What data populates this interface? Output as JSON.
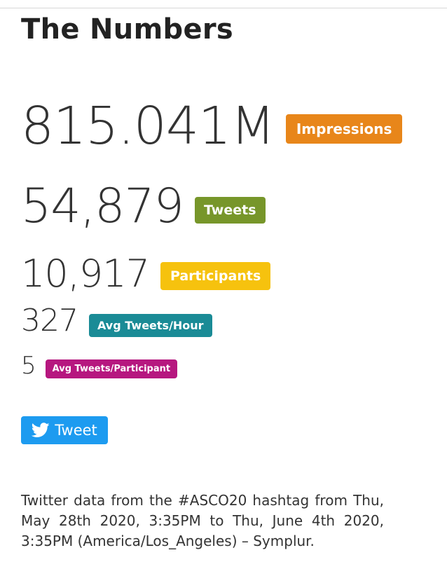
{
  "header": {
    "title": "The Numbers"
  },
  "stats": {
    "impressions": {
      "value": "815.041M",
      "label": "Impressions",
      "color": "#e8861a"
    },
    "tweets": {
      "value": "54,879",
      "label": "Tweets",
      "color": "#77962a"
    },
    "participants": {
      "value": "10,917",
      "label": "Participants",
      "color": "#f6c20e"
    },
    "avg_tweets_hour": {
      "value": "327",
      "label": "Avg Tweets/Hour",
      "color": "#1a8b96"
    },
    "avg_tweets_participant": {
      "value": "5",
      "label": "Avg Tweets/Participant",
      "color": "#b6177f"
    }
  },
  "share": {
    "tweet_label": "Tweet",
    "icon": "twitter-bird-icon",
    "color": "#1d9bf0"
  },
  "description": "Twitter data from the #ASCO20 hashtag from Thu, May 28th 2020, 3:35PM to Thu, June 4th 2020, 3:35PM (America/Los_Angeles) – Symplur."
}
